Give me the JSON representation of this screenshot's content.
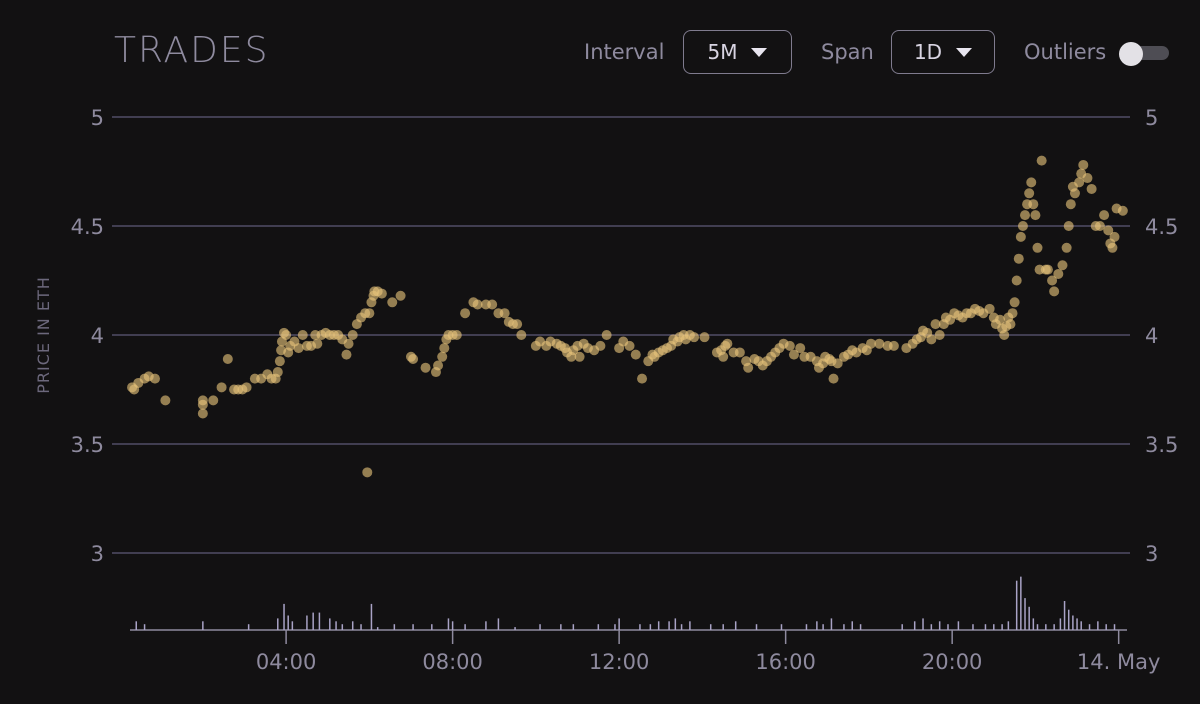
{
  "header": {
    "title": "TRADES",
    "interval_label": "Interval",
    "interval_value": "5M",
    "span_label": "Span",
    "span_value": "1D",
    "outliers_label": "Outliers",
    "outliers_on": false
  },
  "colors": {
    "background": "#121112",
    "grid": "#514d66",
    "axis_text": "#8e8a9e",
    "point": "#e6c47a",
    "volume": "#a9a3c6"
  },
  "chart_data": {
    "type": "scatter",
    "ylabel": "PRICE IN ETH",
    "ylim": [
      3,
      5
    ],
    "y_ticks": [
      "5",
      "4.5",
      "4",
      "3.5",
      "3"
    ],
    "x_ticks": [
      "04:00",
      "08:00",
      "12:00",
      "16:00",
      "20:00",
      "14. May"
    ],
    "x_tick_hours": [
      4,
      8,
      12,
      16,
      20,
      24
    ],
    "xlim_hours": [
      0.25,
      24.2
    ],
    "points": [
      [
        0.3,
        3.76
      ],
      [
        0.35,
        3.75
      ],
      [
        0.45,
        3.78
      ],
      [
        0.6,
        3.8
      ],
      [
        0.7,
        3.81
      ],
      [
        0.85,
        3.8
      ],
      [
        1.1,
        3.7
      ],
      [
        2.0,
        3.64
      ],
      [
        2.0,
        3.68
      ],
      [
        2.0,
        3.7
      ],
      [
        2.25,
        3.7
      ],
      [
        2.45,
        3.76
      ],
      [
        2.6,
        3.89
      ],
      [
        2.75,
        3.75
      ],
      [
        2.85,
        3.75
      ],
      [
        2.95,
        3.75
      ],
      [
        3.05,
        3.76
      ],
      [
        3.25,
        3.8
      ],
      [
        3.4,
        3.8
      ],
      [
        3.55,
        3.82
      ],
      [
        3.65,
        3.8
      ],
      [
        3.75,
        3.8
      ],
      [
        3.8,
        3.83
      ],
      [
        3.85,
        3.88
      ],
      [
        3.88,
        3.93
      ],
      [
        3.9,
        3.97
      ],
      [
        3.95,
        4.01
      ],
      [
        4.0,
        4.0
      ],
      [
        4.05,
        3.92
      ],
      [
        4.1,
        3.95
      ],
      [
        4.2,
        3.97
      ],
      [
        4.3,
        3.94
      ],
      [
        4.4,
        4.0
      ],
      [
        4.5,
        3.95
      ],
      [
        4.6,
        3.95
      ],
      [
        4.7,
        4.0
      ],
      [
        4.75,
        3.96
      ],
      [
        4.85,
        4.0
      ],
      [
        4.95,
        4.01
      ],
      [
        5.05,
        4.0
      ],
      [
        5.15,
        4.0
      ],
      [
        5.25,
        4.0
      ],
      [
        5.35,
        3.98
      ],
      [
        5.45,
        3.91
      ],
      [
        5.5,
        3.96
      ],
      [
        5.6,
        4.0
      ],
      [
        5.7,
        4.05
      ],
      [
        5.8,
        4.08
      ],
      [
        5.9,
        4.1
      ],
      [
        6.0,
        4.1
      ],
      [
        5.95,
        3.37
      ],
      [
        6.05,
        4.15
      ],
      [
        6.1,
        4.18
      ],
      [
        6.12,
        4.2
      ],
      [
        6.2,
        4.2
      ],
      [
        6.3,
        4.19
      ],
      [
        6.55,
        4.15
      ],
      [
        6.75,
        4.18
      ],
      [
        7.0,
        3.9
      ],
      [
        7.05,
        3.89
      ],
      [
        7.35,
        3.85
      ],
      [
        7.6,
        3.83
      ],
      [
        7.65,
        3.86
      ],
      [
        7.75,
        3.9
      ],
      [
        7.8,
        3.94
      ],
      [
        7.85,
        3.98
      ],
      [
        7.9,
        4.0
      ],
      [
        8.0,
        4.0
      ],
      [
        8.1,
        4.0
      ],
      [
        8.3,
        4.1
      ],
      [
        8.5,
        4.15
      ],
      [
        8.6,
        4.14
      ],
      [
        8.8,
        4.14
      ],
      [
        8.95,
        4.14
      ],
      [
        9.1,
        4.1
      ],
      [
        9.25,
        4.1
      ],
      [
        9.35,
        4.06
      ],
      [
        9.45,
        4.05
      ],
      [
        9.55,
        4.05
      ],
      [
        9.65,
        4.0
      ],
      [
        10.0,
        3.95
      ],
      [
        10.1,
        3.97
      ],
      [
        10.25,
        3.95
      ],
      [
        10.35,
        3.97
      ],
      [
        10.5,
        3.96
      ],
      [
        10.6,
        3.95
      ],
      [
        10.7,
        3.94
      ],
      [
        10.75,
        3.92
      ],
      [
        10.85,
        3.9
      ],
      [
        10.9,
        3.93
      ],
      [
        11.0,
        3.95
      ],
      [
        11.05,
        3.9
      ],
      [
        11.15,
        3.96
      ],
      [
        11.25,
        3.94
      ],
      [
        11.4,
        3.93
      ],
      [
        11.55,
        3.95
      ],
      [
        11.7,
        4.0
      ],
      [
        12.0,
        3.94
      ],
      [
        12.1,
        3.97
      ],
      [
        12.25,
        3.95
      ],
      [
        12.4,
        3.91
      ],
      [
        12.55,
        3.8
      ],
      [
        12.7,
        3.88
      ],
      [
        12.8,
        3.91
      ],
      [
        12.85,
        3.9
      ],
      [
        12.95,
        3.92
      ],
      [
        13.05,
        3.93
      ],
      [
        13.15,
        3.94
      ],
      [
        13.25,
        3.95
      ],
      [
        13.3,
        3.98
      ],
      [
        13.4,
        3.97
      ],
      [
        13.45,
        3.99
      ],
      [
        13.55,
        4.0
      ],
      [
        13.6,
        3.98
      ],
      [
        13.7,
        4.0
      ],
      [
        13.8,
        3.99
      ],
      [
        14.05,
        3.99
      ],
      [
        14.35,
        3.92
      ],
      [
        14.45,
        3.93
      ],
      [
        14.5,
        3.9
      ],
      [
        14.55,
        3.95
      ],
      [
        14.6,
        3.96
      ],
      [
        14.75,
        3.92
      ],
      [
        14.9,
        3.92
      ],
      [
        15.05,
        3.88
      ],
      [
        15.1,
        3.85
      ],
      [
        15.25,
        3.89
      ],
      [
        15.35,
        3.88
      ],
      [
        15.45,
        3.86
      ],
      [
        15.55,
        3.88
      ],
      [
        15.65,
        3.9
      ],
      [
        15.75,
        3.92
      ],
      [
        15.85,
        3.94
      ],
      [
        15.95,
        3.96
      ],
      [
        16.1,
        3.95
      ],
      [
        16.2,
        3.91
      ],
      [
        16.35,
        3.94
      ],
      [
        16.45,
        3.9
      ],
      [
        16.6,
        3.9
      ],
      [
        16.75,
        3.88
      ],
      [
        16.8,
        3.85
      ],
      [
        16.9,
        3.87
      ],
      [
        16.95,
        3.9
      ],
      [
        17.05,
        3.89
      ],
      [
        17.1,
        3.88
      ],
      [
        17.15,
        3.8
      ],
      [
        17.25,
        3.87
      ],
      [
        17.4,
        3.9
      ],
      [
        17.5,
        3.91
      ],
      [
        17.6,
        3.93
      ],
      [
        17.7,
        3.92
      ],
      [
        17.85,
        3.94
      ],
      [
        17.95,
        3.93
      ],
      [
        18.05,
        3.96
      ],
      [
        18.25,
        3.96
      ],
      [
        18.45,
        3.95
      ],
      [
        18.6,
        3.95
      ],
      [
        18.9,
        3.94
      ],
      [
        19.05,
        3.96
      ],
      [
        19.15,
        3.98
      ],
      [
        19.25,
        3.99
      ],
      [
        19.3,
        4.02
      ],
      [
        19.4,
        4.01
      ],
      [
        19.5,
        3.98
      ],
      [
        19.6,
        4.05
      ],
      [
        19.7,
        4.0
      ],
      [
        19.8,
        4.05
      ],
      [
        19.85,
        4.08
      ],
      [
        19.95,
        4.07
      ],
      [
        20.05,
        4.1
      ],
      [
        20.15,
        4.09
      ],
      [
        20.25,
        4.08
      ],
      [
        20.35,
        4.1
      ],
      [
        20.45,
        4.1
      ],
      [
        20.55,
        4.12
      ],
      [
        20.65,
        4.11
      ],
      [
        20.75,
        4.1
      ],
      [
        20.9,
        4.12
      ],
      [
        21.0,
        4.08
      ],
      [
        21.05,
        4.05
      ],
      [
        21.15,
        4.07
      ],
      [
        21.2,
        4.03
      ],
      [
        21.25,
        4.0
      ],
      [
        21.3,
        4.04
      ],
      [
        21.35,
        4.08
      ],
      [
        21.4,
        4.05
      ],
      [
        21.45,
        4.1
      ],
      [
        21.5,
        4.15
      ],
      [
        21.55,
        4.25
      ],
      [
        21.6,
        4.35
      ],
      [
        21.65,
        4.45
      ],
      [
        21.7,
        4.5
      ],
      [
        21.75,
        4.55
      ],
      [
        21.8,
        4.6
      ],
      [
        21.85,
        4.65
      ],
      [
        21.9,
        4.7
      ],
      [
        21.95,
        4.6
      ],
      [
        22.0,
        4.55
      ],
      [
        22.05,
        4.4
      ],
      [
        22.1,
        4.3
      ],
      [
        22.15,
        4.8
      ],
      [
        22.25,
        4.3
      ],
      [
        22.3,
        4.3
      ],
      [
        22.4,
        4.25
      ],
      [
        22.45,
        4.2
      ],
      [
        22.55,
        4.28
      ],
      [
        22.65,
        4.32
      ],
      [
        22.75,
        4.4
      ],
      [
        22.8,
        4.5
      ],
      [
        22.85,
        4.6
      ],
      [
        22.9,
        4.68
      ],
      [
        22.95,
        4.65
      ],
      [
        23.05,
        4.7
      ],
      [
        23.1,
        4.74
      ],
      [
        23.15,
        4.78
      ],
      [
        23.25,
        4.72
      ],
      [
        23.35,
        4.67
      ],
      [
        23.45,
        4.5
      ],
      [
        23.55,
        4.5
      ],
      [
        23.65,
        4.55
      ],
      [
        23.75,
        4.48
      ],
      [
        23.8,
        4.42
      ],
      [
        23.85,
        4.4
      ],
      [
        23.9,
        4.45
      ],
      [
        23.95,
        4.58
      ],
      [
        24.1,
        4.57
      ]
    ],
    "volume_bars": [
      [
        0.4,
        0.15
      ],
      [
        0.6,
        0.1
      ],
      [
        2.0,
        0.15
      ],
      [
        3.1,
        0.1
      ],
      [
        3.8,
        0.2
      ],
      [
        3.95,
        0.45
      ],
      [
        4.05,
        0.25
      ],
      [
        4.15,
        0.15
      ],
      [
        4.5,
        0.25
      ],
      [
        4.65,
        0.3
      ],
      [
        4.8,
        0.3
      ],
      [
        5.05,
        0.2
      ],
      [
        5.2,
        0.15
      ],
      [
        5.35,
        0.1
      ],
      [
        5.6,
        0.15
      ],
      [
        5.8,
        0.1
      ],
      [
        6.05,
        0.45
      ],
      [
        6.2,
        0.05
      ],
      [
        6.6,
        0.1
      ],
      [
        7.05,
        0.1
      ],
      [
        7.5,
        0.1
      ],
      [
        7.9,
        0.2
      ],
      [
        8.0,
        0.15
      ],
      [
        8.3,
        0.1
      ],
      [
        8.8,
        0.15
      ],
      [
        9.1,
        0.2
      ],
      [
        9.5,
        0.05
      ],
      [
        10.1,
        0.1
      ],
      [
        10.6,
        0.1
      ],
      [
        10.9,
        0.1
      ],
      [
        11.5,
        0.1
      ],
      [
        11.9,
        0.1
      ],
      [
        12.0,
        0.2
      ],
      [
        12.5,
        0.1
      ],
      [
        12.75,
        0.1
      ],
      [
        12.95,
        0.15
      ],
      [
        13.2,
        0.15
      ],
      [
        13.35,
        0.2
      ],
      [
        13.5,
        0.1
      ],
      [
        13.7,
        0.15
      ],
      [
        14.2,
        0.1
      ],
      [
        14.5,
        0.1
      ],
      [
        14.8,
        0.15
      ],
      [
        15.3,
        0.1
      ],
      [
        15.9,
        0.1
      ],
      [
        16.5,
        0.1
      ],
      [
        16.75,
        0.15
      ],
      [
        16.9,
        0.1
      ],
      [
        17.1,
        0.2
      ],
      [
        17.4,
        0.1
      ],
      [
        17.6,
        0.15
      ],
      [
        17.8,
        0.1
      ],
      [
        18.8,
        0.1
      ],
      [
        19.1,
        0.15
      ],
      [
        19.3,
        0.2
      ],
      [
        19.5,
        0.1
      ],
      [
        19.7,
        0.15
      ],
      [
        19.9,
        0.1
      ],
      [
        20.15,
        0.15
      ],
      [
        20.5,
        0.1
      ],
      [
        20.8,
        0.1
      ],
      [
        21.0,
        0.1
      ],
      [
        21.2,
        0.1
      ],
      [
        21.35,
        0.15
      ],
      [
        21.55,
        0.85
      ],
      [
        21.65,
        0.92
      ],
      [
        21.75,
        0.55
      ],
      [
        21.85,
        0.4
      ],
      [
        21.95,
        0.2
      ],
      [
        22.05,
        0.1
      ],
      [
        22.25,
        0.1
      ],
      [
        22.45,
        0.1
      ],
      [
        22.6,
        0.2
      ],
      [
        22.7,
        0.5
      ],
      [
        22.8,
        0.35
      ],
      [
        22.9,
        0.25
      ],
      [
        23.0,
        0.2
      ],
      [
        23.1,
        0.15
      ],
      [
        23.3,
        0.1
      ],
      [
        23.5,
        0.15
      ],
      [
        23.7,
        0.1
      ],
      [
        23.9,
        0.1
      ]
    ]
  }
}
